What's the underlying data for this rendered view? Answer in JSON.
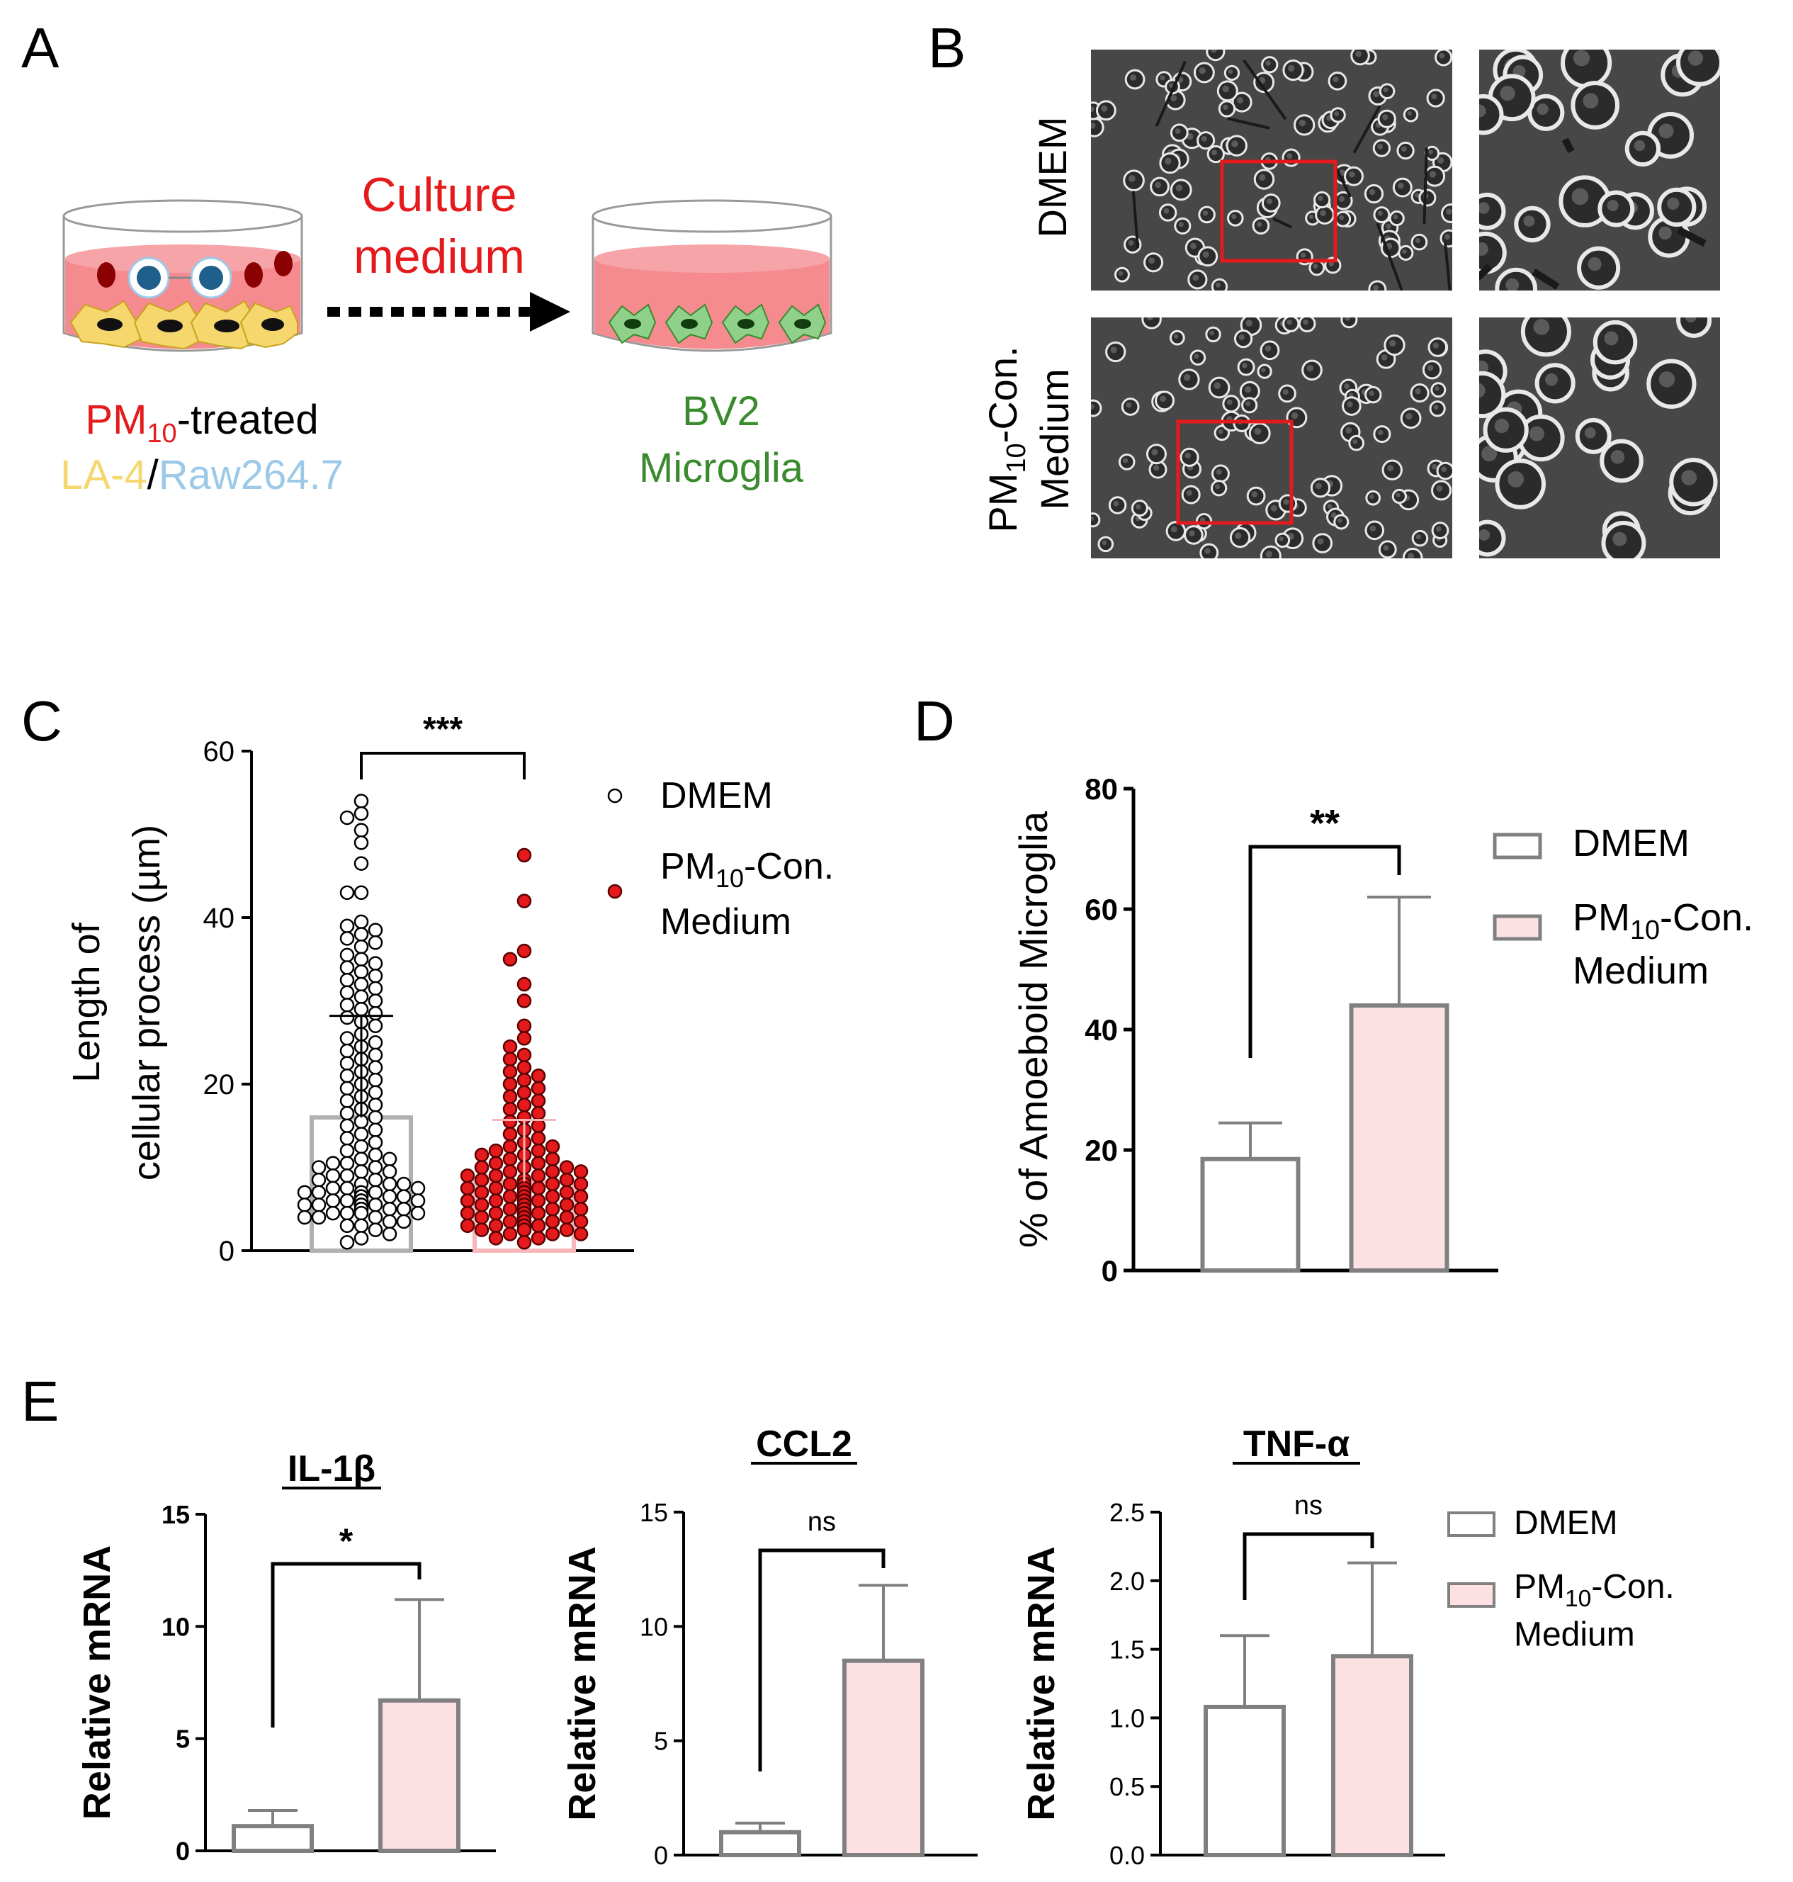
{
  "panels": {
    "A": {
      "letter": "A",
      "arrow_label_line1": "Culture",
      "arrow_label_line2": "medium",
      "source_label_pm": "PM",
      "source_label_sub": "10",
      "source_label_suffix": "-treated",
      "source_label_la4": "LA-4",
      "source_label_sep": "/",
      "source_label_raw": "Raw264.7",
      "target_label_line1": "BV2",
      "target_label_line2": "Microglia",
      "colors": {
        "pm": "#e41a1c",
        "la4": "#f5d76e",
        "raw": "#9cc9e8",
        "bv2": "#3a8a2e",
        "medium": "#f58a8f"
      }
    },
    "B": {
      "letter": "B",
      "row1_label": "DMEM",
      "row2_label_line1_pm": "PM",
      "row2_label_line1_sub": "10",
      "row2_label_line1_suffix": "-Con.",
      "row2_label_line2": "Medium"
    }
  },
  "chart_data": [
    {
      "panel": "C",
      "type": "scatter",
      "ylabel_line1": "Length of",
      "ylabel_line2": "cellular process (µm)",
      "ylim": [
        0,
        60
      ],
      "yticks": [
        "0",
        "20",
        "40",
        "60"
      ],
      "significance": "***",
      "legend": [
        {
          "name": "DMEM",
          "marker": "open-circle"
        },
        {
          "name_pm": "PM",
          "name_sub": "10",
          "name_suffix": "-Con.",
          "name_line2": "Medium",
          "marker": "red-circle"
        }
      ],
      "series": [
        {
          "name": "DMEM",
          "mean": 16,
          "sd_upper": 28.2,
          "color": "#ffffff",
          "values": [
            54,
            52.5,
            52,
            50.5,
            49,
            46.5,
            43,
            43,
            39.5,
            39,
            38.5,
            38,
            37.5,
            37,
            36.5,
            35.5,
            35,
            34.5,
            34,
            33.5,
            33,
            32.5,
            32,
            31.5,
            31,
            30.5,
            30,
            29.5,
            29,
            28.5,
            28,
            27.5,
            27,
            26,
            25.5,
            25,
            24.5,
            24,
            23.5,
            23,
            22.5,
            22,
            21.5,
            21,
            20.5,
            20,
            19.5,
            19,
            18.5,
            18,
            17.5,
            17,
            16.5,
            16,
            15.5,
            15,
            14.5,
            14,
            13.5,
            13,
            12.5,
            12,
            11.5,
            11,
            11,
            10.5,
            10.5,
            10,
            10,
            9.5,
            9.5,
            9,
            9,
            8.5,
            8.5,
            8,
            8,
            8,
            7.5,
            7.5,
            7.5,
            7,
            7,
            7,
            7,
            6.5,
            6.5,
            6.5,
            6.5,
            6.5,
            6,
            6,
            6,
            6,
            6,
            6,
            5.5,
            5.5,
            5.5,
            5.5,
            5.5,
            5,
            5,
            5,
            5,
            5,
            4.5,
            4.5,
            4.5,
            4.5,
            4,
            4,
            4,
            3.5,
            3.5,
            3,
            3,
            2.5,
            2,
            1.5,
            1
          ]
        },
        {
          "name": "PM10-Con. Medium",
          "mean": 8.3,
          "sd_upper": 15.7,
          "color": "#e41a1c",
          "values": [
            47.5,
            42,
            36,
            35,
            32,
            30,
            27,
            25.5,
            24.5,
            23.5,
            23,
            22,
            21.5,
            21,
            20.5,
            20,
            19.5,
            19,
            18.5,
            18,
            17.5,
            17,
            16.5,
            16,
            15.5,
            15,
            14.5,
            14,
            13.5,
            13,
            12.5,
            12.5,
            12,
            12,
            11.5,
            11.5,
            11,
            11,
            10.5,
            10.5,
            10,
            10,
            10,
            9.5,
            9.5,
            9.5,
            9,
            9,
            9,
            8.5,
            8.5,
            8.5,
            8,
            8,
            8,
            8,
            7.5,
            7.5,
            7.5,
            7.5,
            7,
            7,
            7,
            7,
            7,
            6.5,
            6.5,
            6.5,
            6.5,
            6.5,
            6,
            6,
            6,
            6,
            6,
            6,
            5.5,
            5.5,
            5.5,
            5.5,
            5.5,
            5.5,
            5,
            5,
            5,
            5,
            5,
            5,
            5,
            4.5,
            4.5,
            4.5,
            4.5,
            4.5,
            4.5,
            4,
            4,
            4,
            4,
            4,
            4,
            3.5,
            3.5,
            3.5,
            3.5,
            3.5,
            3,
            3,
            3,
            3,
            3,
            2.5,
            2.5,
            2.5,
            2.5,
            2,
            2,
            2,
            1.5,
            1.5,
            1
          ]
        }
      ]
    },
    {
      "panel": "D",
      "type": "bar",
      "ylabel": "% of Amoeboid Microglia",
      "ylim": [
        0,
        80
      ],
      "yticks": [
        "0",
        "20",
        "40",
        "60",
        "80"
      ],
      "significance": "**",
      "categories": [
        "DMEM",
        "PM10-Con. Medium"
      ],
      "values": [
        18.5,
        44
      ],
      "errors_upper": [
        24.5,
        62
      ],
      "legend": [
        {
          "name": "DMEM"
        },
        {
          "name_pm": "PM",
          "name_sub": "10",
          "name_suffix": "-Con.",
          "name_line2": "Medium"
        }
      ]
    },
    {
      "panel": "E",
      "type": "bar",
      "title": "IL-1β",
      "ylabel": "Relative mRNA",
      "ylim": [
        0,
        15
      ],
      "yticks": [
        "0",
        "5",
        "10",
        "15"
      ],
      "significance": "*",
      "categories": [
        "DMEM",
        "PM10-Con. Medium"
      ],
      "values": [
        1.1,
        6.7
      ],
      "errors_upper": [
        1.8,
        11.2
      ]
    },
    {
      "panel": "E",
      "type": "bar",
      "title": "CCL2",
      "ylabel": "Relative mRNA",
      "ylim": [
        0,
        15
      ],
      "yticks": [
        "0",
        "5",
        "10",
        "15"
      ],
      "significance": "ns",
      "categories": [
        "DMEM",
        "PM10-Con. Medium"
      ],
      "values": [
        1.0,
        8.5
      ],
      "errors_upper": [
        1.4,
        11.8
      ]
    },
    {
      "panel": "E",
      "type": "bar",
      "title": "TNF-α",
      "ylabel": "Relative mRNA",
      "ylim": [
        0,
        2.5
      ],
      "yticks": [
        "0.0",
        "0.5",
        "1.0",
        "1.5",
        "2.0",
        "2.5"
      ],
      "significance": "ns",
      "categories": [
        "DMEM",
        "PM10-Con. Medium"
      ],
      "values": [
        1.08,
        1.45
      ],
      "errors_upper": [
        1.6,
        2.13
      ],
      "legend": [
        {
          "name": "DMEM"
        },
        {
          "name_pm": "PM",
          "name_sub": "10",
          "name_suffix": "-Con.",
          "name_line2": "Medium"
        }
      ]
    }
  ],
  "panel_letters": {
    "C": "C",
    "D": "D",
    "E": "E"
  },
  "colors": {
    "bar_dmem_fill": "#ffffff",
    "bar_pm_fill": "#fde0e2",
    "bar_stroke": "#808080",
    "dot_pm": "#e41a1c",
    "roi": "#e41a1c"
  }
}
